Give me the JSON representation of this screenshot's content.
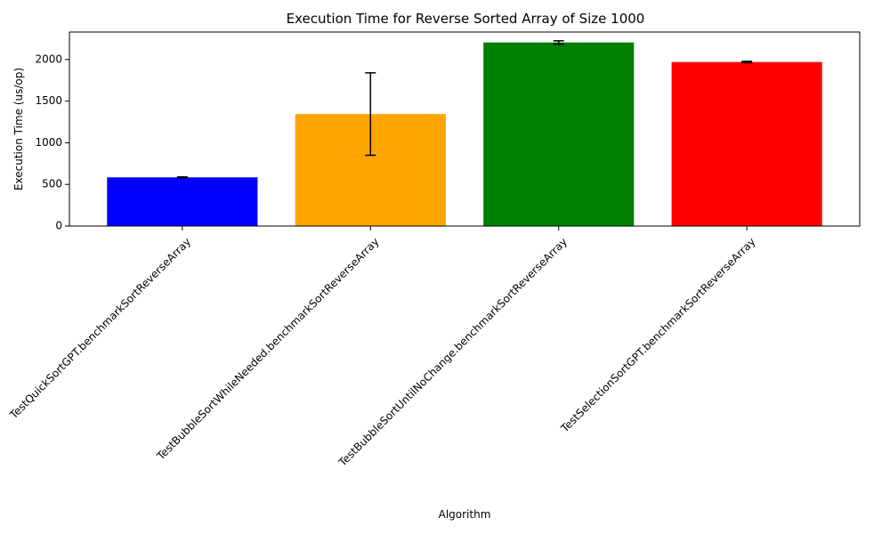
{
  "chart_data": {
    "type": "bar",
    "title": "Execution Time for Reverse Sorted Array of Size 1000",
    "xlabel": "Algorithm",
    "ylabel": "Execution Time (us/op)",
    "categories": [
      "TestQuickSortGPT.benchmarkSortReverseArray",
      "TestBubbleSortWhileNeeded.benchmarkSortReverseArray",
      "TestBubbleSortUntilNoChange.benchmarkSortReverseArray",
      "TestSelectionSortGPT.benchmarkSortReverseArray"
    ],
    "values": [
      585,
      1345,
      2205,
      1970
    ],
    "errors": [
      5,
      495,
      20,
      8
    ],
    "colors": [
      "#0000ff",
      "#ffa500",
      "#008000",
      "#ff0000"
    ],
    "ylim": [
      0,
      2330
    ],
    "yticks": [
      0,
      500,
      1000,
      1500,
      2000
    ],
    "grid": false,
    "xtick_rotation": 45
  }
}
